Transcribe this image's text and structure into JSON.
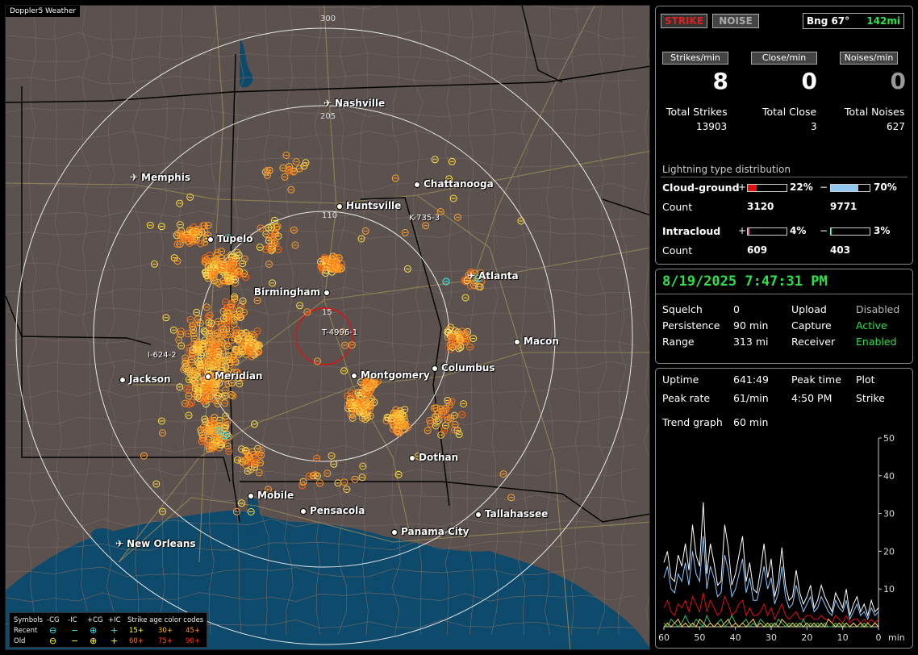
{
  "map": {
    "app_tag": "Doppler5 Weather",
    "ring_labels": [
      "300",
      "205",
      "110",
      "15"
    ],
    "cities": [
      {
        "name": "Nashville",
        "airport": true
      },
      {
        "name": "Memphis",
        "airport": true
      },
      {
        "name": "Chattanooga",
        "airport": false
      },
      {
        "name": "Huntsville",
        "airport": false
      },
      {
        "name": "Tupelo",
        "airport": false
      },
      {
        "name": "Atlanta",
        "airport": true
      },
      {
        "name": "Birmingham",
        "airport": false
      },
      {
        "name": "Macon",
        "airport": false
      },
      {
        "name": "Jackson",
        "airport": false
      },
      {
        "name": "Meridian",
        "airport": false
      },
      {
        "name": "Montgomery",
        "airport": false
      },
      {
        "name": "Columbus",
        "airport": false
      },
      {
        "name": "Dothan",
        "airport": false
      },
      {
        "name": "Mobile",
        "airport": false
      },
      {
        "name": "Pensacola",
        "airport": false
      },
      {
        "name": "Tallahassee",
        "airport": false
      },
      {
        "name": "Panama City",
        "airport": false
      },
      {
        "name": "New Orleans",
        "airport": true
      }
    ],
    "storms": [
      {
        "label": "K-735-3"
      },
      {
        "label": "T-4996-1"
      },
      {
        "label": "I-624-2"
      }
    ]
  },
  "legend": {
    "symbols_label": "Symbols",
    "headers": [
      "-CG",
      "-IC",
      "+CG",
      "+IC"
    ],
    "recent_label": "Recent",
    "old_label": "Old",
    "age_title": "Strike age color codes",
    "recent_ages": [
      "15+",
      "30+",
      "45+"
    ],
    "old_ages": [
      "60+",
      "75+",
      "90+"
    ],
    "age_colors_recent": [
      "#ffff40",
      "#ffc020",
      "#ff9020"
    ],
    "age_colors_old": [
      "#ff7010",
      "#ff5010",
      "#ff3010"
    ],
    "symbol_glyphs_recent": [
      "⊖",
      "−",
      "⊕",
      "+"
    ],
    "symbol_glyphs_old": [
      "⊖",
      "−",
      "⊕",
      "+"
    ]
  },
  "stats": {
    "strike_button": "STRIKE",
    "noise_button": "NOISE",
    "bearing": "Bng 67°",
    "distance": "142mi",
    "heads": [
      "Strikes/min",
      "Close/min",
      "Noises/min"
    ],
    "rates": [
      "8",
      "0",
      "0"
    ],
    "total_labels": [
      "Total Strikes",
      "Total Close",
      "Total Noises"
    ],
    "totals": [
      "13903",
      "3",
      "627"
    ],
    "distribution_title": "Lightning type distribution",
    "cloud_ground": {
      "label": "Cloud-ground",
      "pos_sign": "+",
      "pos_pct": "22%",
      "pos_fraction": 0.22,
      "neg_sign": "−",
      "neg_pct": "70%",
      "neg_fraction": 0.7,
      "count_label": "Count",
      "pos_count": "3120",
      "neg_count": "9771"
    },
    "intracloud": {
      "label": "Intracloud",
      "pos_sign": "+",
      "pos_pct": "4%",
      "pos_fraction": 0.04,
      "neg_sign": "−",
      "neg_pct": "3%",
      "neg_fraction": 0.03,
      "count_label": "Count",
      "pos_count": "609",
      "neg_count": "403"
    },
    "colors": {
      "cg_pos": "#e01010",
      "cg_neg": "#90c8f0",
      "ic_pos": "#e060a0",
      "ic_neg": "#30c060"
    }
  },
  "status": {
    "datetime": "8/19/2025 7:47:31 PM",
    "rows": [
      {
        "k1": "Squelch",
        "v1": "0",
        "k2": "Upload",
        "v2": "Disabled",
        "v2_state": "grey"
      },
      {
        "k1": "Persistence",
        "v1": "90 min",
        "k2": "Capture",
        "v2": "Active",
        "v2_state": "green"
      },
      {
        "k1": "Range",
        "v1": "313 mi",
        "k2": "Receiver",
        "v2": "Enabled",
        "v2_state": "green"
      }
    ]
  },
  "trend": {
    "uptime_label": "Uptime",
    "uptime": "641:49",
    "peak_time_label": "Peak time",
    "peak_time": "4:50 PM",
    "plot_label": "Plot",
    "peak_rate_label": "Peak rate",
    "peak_rate": "61/min",
    "plot_value": "Strike",
    "trend_label": "Trend graph",
    "trend_value": "60 min",
    "y_ticks": [
      "50",
      "40",
      "30",
      "20",
      "10"
    ],
    "x_ticks": [
      "60",
      "50",
      "40",
      "30",
      "20",
      "10",
      "0"
    ],
    "x_unit": "min"
  },
  "chart_data": {
    "type": "line",
    "xlabel": "min",
    "ylabel": "",
    "xlim": [
      60,
      0
    ],
    "ylim": [
      0,
      50
    ],
    "series": [
      {
        "name": "",
        "color": "#ffffff",
        "values": [
          17,
          20,
          13,
          12,
          19,
          16,
          22,
          15,
          27,
          19,
          16,
          33,
          14,
          22,
          17,
          11,
          12,
          27,
          21,
          11,
          14,
          19,
          24,
          12,
          17,
          10,
          9,
          15,
          22,
          13,
          18,
          8,
          12,
          21,
          11,
          7,
          8,
          15,
          9,
          6,
          8,
          11,
          5,
          7,
          11,
          8,
          6,
          4,
          9,
          7,
          5,
          10,
          3,
          6,
          8,
          4,
          6,
          3,
          7,
          4,
          5
        ]
      },
      {
        "name": "",
        "color": "#8ec8ff",
        "values": [
          13,
          16,
          10,
          9,
          14,
          12,
          17,
          11,
          20,
          14,
          12,
          24,
          10,
          16,
          13,
          8,
          9,
          19,
          15,
          8,
          10,
          14,
          18,
          9,
          13,
          7,
          7,
          11,
          16,
          10,
          13,
          6,
          9,
          16,
          8,
          5,
          6,
          11,
          7,
          4,
          6,
          8,
          4,
          5,
          8,
          6,
          4,
          3,
          7,
          5,
          4,
          7,
          2,
          4,
          6,
          3,
          4,
          2,
          5,
          3,
          4
        ]
      },
      {
        "name": "",
        "color": "#e01010",
        "values": [
          5,
          7,
          4,
          3,
          6,
          5,
          7,
          4,
          8,
          6,
          4,
          9,
          4,
          7,
          5,
          3,
          4,
          8,
          6,
          3,
          4,
          6,
          7,
          3,
          5,
          3,
          3,
          4,
          6,
          3,
          5,
          2,
          4,
          6,
          3,
          2,
          3,
          4,
          2,
          2,
          3,
          3,
          2,
          2,
          3,
          2,
          2,
          1,
          3,
          2,
          1,
          3,
          1,
          2,
          2,
          1,
          2,
          1,
          2,
          1,
          2
        ]
      },
      {
        "name": "",
        "color": "#30c060",
        "values": [
          1,
          0,
          2,
          1,
          0,
          1,
          3,
          1,
          0,
          2,
          1,
          0,
          3,
          1,
          0,
          1,
          2,
          0,
          1,
          3,
          1,
          0,
          1,
          2,
          0,
          1,
          0,
          2,
          1,
          0,
          1,
          0,
          2,
          1,
          0,
          1,
          0,
          1,
          0,
          2,
          0,
          1,
          0,
          1,
          0,
          1,
          0,
          0,
          1,
          0,
          1,
          0,
          0,
          1,
          0,
          0,
          1,
          0,
          0,
          1,
          0
        ]
      },
      {
        "name": "",
        "color": "#ffd040",
        "values": [
          0,
          1,
          0,
          1,
          2,
          0,
          1,
          0,
          1,
          0,
          2,
          1,
          0,
          1,
          0,
          1,
          0,
          1,
          2,
          0,
          1,
          0,
          1,
          0,
          1,
          2,
          0,
          1,
          0,
          1,
          0,
          1,
          0,
          2,
          1,
          0,
          1,
          0,
          1,
          0,
          1,
          0,
          1,
          0,
          1,
          0,
          2,
          1,
          0,
          1,
          0,
          1,
          0,
          1,
          0,
          1,
          0,
          1,
          0,
          1,
          0
        ]
      }
    ]
  }
}
